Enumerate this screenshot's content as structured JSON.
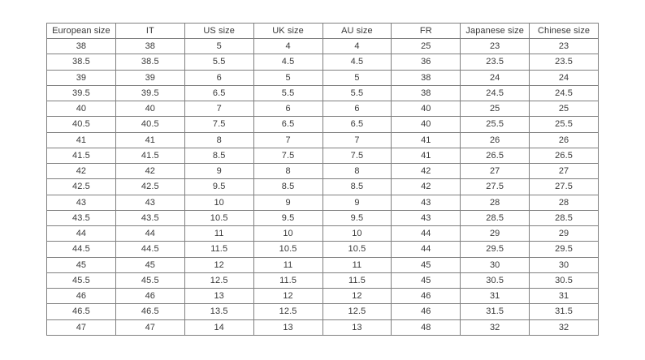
{
  "colors": {
    "border": "#7f7f7f",
    "text": "#3a3a3a",
    "background": "#ffffff"
  },
  "table": {
    "name": "shoe-size-conversion-table",
    "headers": [
      "European size",
      "IT",
      "US size",
      "UK size",
      "AU size",
      "FR",
      "Japanese size",
      "Chinese size"
    ],
    "rows": [
      [
        "38",
        "38",
        "5",
        "4",
        "4",
        "25",
        "23",
        "23"
      ],
      [
        "38.5",
        "38.5",
        "5.5",
        "4.5",
        "4.5",
        "36",
        "23.5",
        "23.5"
      ],
      [
        "39",
        "39",
        "6",
        "5",
        "5",
        "38",
        "24",
        "24"
      ],
      [
        "39.5",
        "39.5",
        "6.5",
        "5.5",
        "5.5",
        "38",
        "24.5",
        "24.5"
      ],
      [
        "40",
        "40",
        "7",
        "6",
        "6",
        "40",
        "25",
        "25"
      ],
      [
        "40.5",
        "40.5",
        "7.5",
        "6.5",
        "6.5",
        "40",
        "25.5",
        "25.5"
      ],
      [
        "41",
        "41",
        "8",
        "7",
        "7",
        "41",
        "26",
        "26"
      ],
      [
        "41.5",
        "41.5",
        "8.5",
        "7.5",
        "7.5",
        "41",
        "26.5",
        "26.5"
      ],
      [
        "42",
        "42",
        "9",
        "8",
        "8",
        "42",
        "27",
        "27"
      ],
      [
        "42.5",
        "42.5",
        "9.5",
        "8.5",
        "8.5",
        "42",
        "27.5",
        "27.5"
      ],
      [
        "43",
        "43",
        "10",
        "9",
        "9",
        "43",
        "28",
        "28"
      ],
      [
        "43.5",
        "43.5",
        "10.5",
        "9.5",
        "9.5",
        "43",
        "28.5",
        "28.5"
      ],
      [
        "44",
        "44",
        "11",
        "10",
        "10",
        "44",
        "29",
        "29"
      ],
      [
        "44.5",
        "44.5",
        "11.5",
        "10.5",
        "10.5",
        "44",
        "29.5",
        "29.5"
      ],
      [
        "45",
        "45",
        "12",
        "11",
        "11",
        "45",
        "30",
        "30"
      ],
      [
        "45.5",
        "45.5",
        "12.5",
        "11.5",
        "11.5",
        "45",
        "30.5",
        "30.5"
      ],
      [
        "46",
        "46",
        "13",
        "12",
        "12",
        "46",
        "31",
        "31"
      ],
      [
        "46.5",
        "46.5",
        "13.5",
        "12.5",
        "12.5",
        "46",
        "31.5",
        "31.5"
      ],
      [
        "47",
        "47",
        "14",
        "13",
        "13",
        "48",
        "32",
        "32"
      ]
    ]
  }
}
